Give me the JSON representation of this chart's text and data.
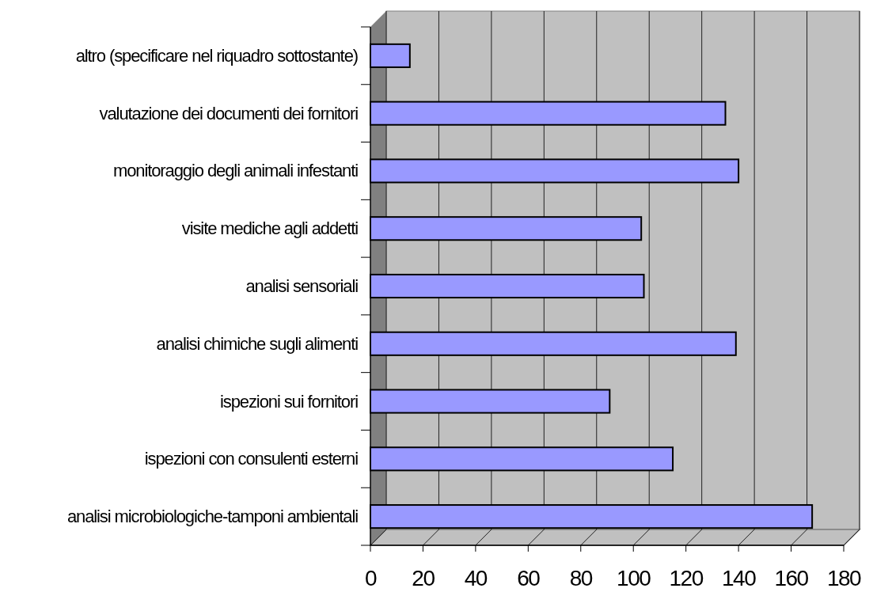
{
  "chart_data": {
    "type": "bar",
    "orientation": "horizontal",
    "categories": [
      "altro (specificare nel riquadro sottostante)",
      "valutazione dei documenti dei fornitori",
      "monitoraggio degli animali infestanti",
      "visite mediche agli addetti",
      "analisi sensoriali",
      "analisi chimiche sugli alimenti",
      "ispezioni sui fornitori",
      "ispezioni con consulenti esterni",
      "analisi microbiologiche-tamponi ambientali"
    ],
    "values": [
      15,
      135,
      140,
      103,
      104,
      139,
      91,
      115,
      168
    ],
    "color": "#9999ff",
    "xlim": [
      0,
      180
    ],
    "xticks": [
      0,
      20,
      40,
      60,
      80,
      100,
      120,
      140,
      160,
      180
    ],
    "grid": "x"
  }
}
